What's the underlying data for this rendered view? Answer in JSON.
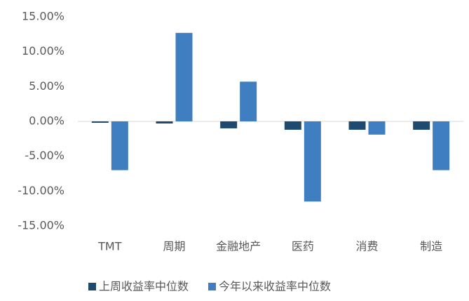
{
  "chart_data": {
    "type": "bar",
    "categories": [
      "TMT",
      "周期",
      "金融地产",
      "医药",
      "消费",
      "制造"
    ],
    "series": [
      {
        "name": "上周收益率中位数",
        "color": "#1d4a6e",
        "values": [
          -0.2,
          -0.3,
          -1.0,
          -1.2,
          -1.2,
          -1.2
        ]
      },
      {
        "name": "今年以来收益率中位数",
        "color": "#3f7fc1",
        "values": [
          -7.0,
          12.7,
          5.7,
          -11.5,
          -1.9,
          -7.0
        ]
      }
    ],
    "ylim": [
      -15,
      15
    ],
    "yticks": [
      {
        "value": 15,
        "label": "15.00%"
      },
      {
        "value": 10,
        "label": "10.00%"
      },
      {
        "value": 5,
        "label": "5.00%"
      },
      {
        "value": 0,
        "label": "0.00%"
      },
      {
        "value": -5,
        "label": "-5.00%"
      },
      {
        "value": -10,
        "label": "-10.00%"
      },
      {
        "value": -15,
        "label": "-15.00%"
      }
    ],
    "grid": false
  }
}
